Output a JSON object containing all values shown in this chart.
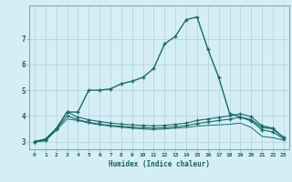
{
  "xlabel": "Humidex (Indice chaleur)",
  "background_color": "#d5eef5",
  "grid_color": "#b0d0d8",
  "line_color": "#1a6b6b",
  "xlim": [
    -0.5,
    23.5
  ],
  "ylim": [
    2.7,
    8.3
  ],
  "xticks": [
    0,
    1,
    2,
    3,
    4,
    5,
    6,
    7,
    8,
    9,
    10,
    11,
    12,
    13,
    14,
    15,
    16,
    17,
    18,
    19,
    20,
    21,
    22,
    23
  ],
  "yticks": [
    3,
    4,
    5,
    6,
    7
  ],
  "curve1_x": [
    0,
    1,
    2,
    3,
    4,
    5,
    6,
    7,
    8,
    9,
    10,
    11,
    12,
    13,
    14,
    15,
    16,
    17,
    18,
    19,
    20,
    21,
    22,
    23
  ],
  "curve1_y": [
    3.0,
    3.1,
    3.5,
    4.15,
    4.15,
    5.0,
    5.0,
    5.05,
    5.25,
    5.35,
    5.5,
    5.85,
    6.8,
    7.1,
    7.75,
    7.85,
    6.6,
    5.5,
    4.1,
    3.95,
    3.85,
    3.55,
    3.5,
    3.15
  ],
  "curve2_x": [
    0,
    1,
    2,
    3,
    4,
    5,
    6,
    7,
    8,
    9,
    10,
    11,
    12,
    13,
    14,
    15,
    16,
    17,
    18,
    19,
    20,
    21,
    22,
    23
  ],
  "curve2_y": [
    3.0,
    3.05,
    3.5,
    4.15,
    3.95,
    3.85,
    3.78,
    3.72,
    3.68,
    3.65,
    3.63,
    3.61,
    3.63,
    3.67,
    3.72,
    3.82,
    3.88,
    3.94,
    4.0,
    4.08,
    3.97,
    3.62,
    3.52,
    3.16
  ],
  "curve3_x": [
    0,
    1,
    2,
    3,
    4,
    5,
    6,
    7,
    8,
    9,
    10,
    11,
    12,
    13,
    14,
    15,
    16,
    17,
    18,
    19,
    20,
    21,
    22,
    23
  ],
  "curve3_y": [
    3.0,
    3.04,
    3.47,
    4.0,
    3.85,
    3.75,
    3.68,
    3.63,
    3.59,
    3.56,
    3.54,
    3.52,
    3.54,
    3.57,
    3.62,
    3.7,
    3.76,
    3.82,
    3.87,
    3.95,
    3.8,
    3.45,
    3.38,
    3.1
  ],
  "curve4_x": [
    0,
    1,
    2,
    3,
    4,
    5,
    6,
    7,
    8,
    9,
    10,
    11,
    12,
    13,
    14,
    15,
    16,
    17,
    18,
    19,
    20,
    21,
    22,
    23
  ],
  "curve4_y": [
    3.0,
    3.03,
    3.44,
    3.88,
    3.82,
    3.72,
    3.65,
    3.6,
    3.56,
    3.52,
    3.49,
    3.47,
    3.49,
    3.52,
    3.55,
    3.6,
    3.63,
    3.65,
    3.67,
    3.72,
    3.55,
    3.2,
    3.15,
    3.05
  ]
}
